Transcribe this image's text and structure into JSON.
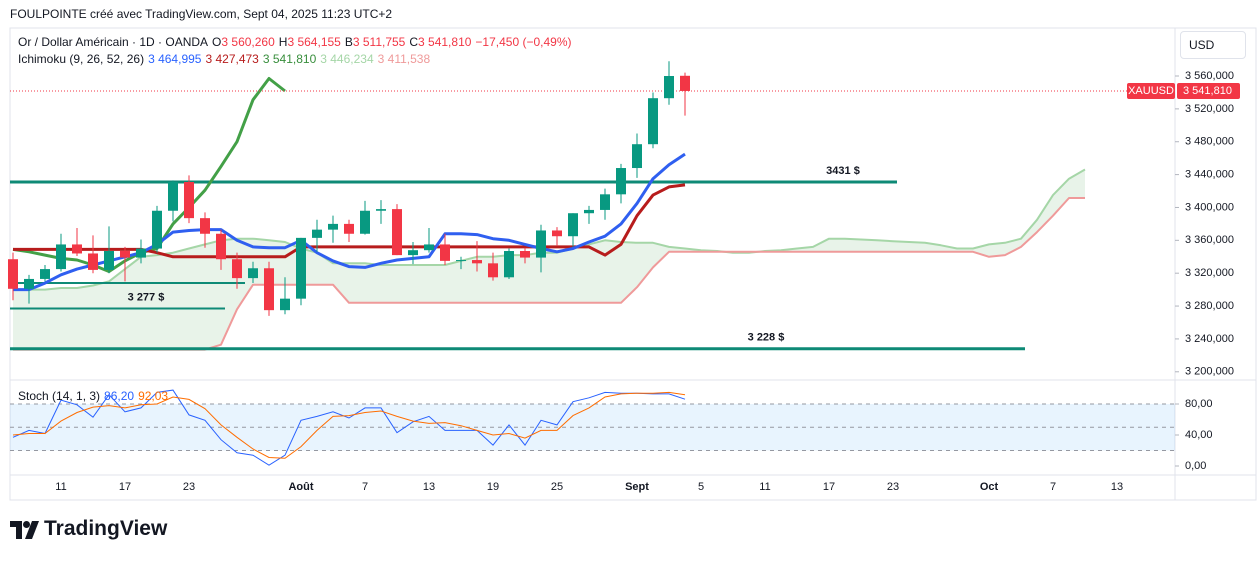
{
  "header": "FOULPOINTE créé avec TradingView.com, Sept 04, 2025 11:23 UTC+2",
  "currency": "USD",
  "logo": "TradingView",
  "chart_data": [
    {
      "type": "candlestick",
      "title": "Or / Dollar Américain · 1D · OANDA",
      "ohlc_legend": [
        {
          "key": "O",
          "label": "3 560,260"
        },
        {
          "key": "H",
          "label": "3 564,155"
        },
        {
          "key": "B",
          "label": "3 511,755"
        },
        {
          "key": "C",
          "label": "3 541,810"
        }
      ],
      "change_label": "−17,450 (−0,49%)",
      "legend_color": "#f23645",
      "up_color": "#089981",
      "down_color": "#f23645",
      "categories": [
        null,
        null,
        null,
        "11",
        null,
        null,
        null,
        "17",
        null,
        null,
        null,
        "23",
        null,
        null,
        null,
        null,
        null,
        null,
        "Août",
        null,
        null,
        null,
        "7",
        null,
        null,
        null,
        "13",
        null,
        null,
        null,
        "19",
        null,
        null,
        null,
        "25",
        null,
        null,
        null,
        null,
        "Sept",
        null,
        null,
        null,
        "5",
        null,
        null,
        null,
        "11",
        null,
        null,
        null,
        "17",
        null,
        null,
        null,
        "23",
        null,
        null,
        null,
        null,
        null,
        "Oct",
        null,
        null,
        null,
        "7",
        null,
        null,
        null,
        "13",
        null,
        null,
        null
      ],
      "open": [
        3337,
        3301,
        3313,
        3325,
        3355,
        3344,
        3324,
        3347,
        3339,
        3350,
        3396,
        3431,
        3387,
        3368,
        3337,
        3314,
        3326,
        3275,
        3289,
        3363,
        3373,
        3380,
        3368,
        3396,
        3398,
        3342,
        3348,
        3355,
        3335,
        3336,
        3332,
        3315,
        3347,
        3339,
        3372,
        3365,
        3393,
        3397,
        3416,
        3448,
        3477,
        3533,
        3560.26,
        null,
        null,
        null,
        null,
        null,
        null,
        null,
        null,
        null,
        null,
        null,
        null,
        null,
        null,
        null,
        null,
        null,
        null,
        null,
        null,
        null,
        null,
        null,
        null,
        null,
        null,
        null,
        null,
        null,
        null
      ],
      "high": [
        3345,
        3318,
        3330,
        3368,
        3375,
        3366,
        3377,
        3352,
        3361,
        3402,
        3433,
        3439,
        3394,
        3373,
        3345,
        3334,
        3334,
        3315,
        3363,
        3385,
        3390,
        3385,
        3408,
        3409,
        3404,
        3358,
        3375,
        3368,
        3340,
        3359,
        3345,
        3350,
        3351,
        3379,
        3376,
        3393,
        3402,
        3423,
        3453,
        3490,
        3540,
        3578,
        3564.155,
        null,
        null,
        null,
        null,
        null,
        null,
        null,
        null,
        null,
        null,
        null,
        null,
        null,
        null,
        null,
        null,
        null,
        null,
        null,
        null,
        null,
        null,
        null,
        null,
        null,
        null,
        null,
        null,
        null,
        null
      ],
      "low": [
        3287,
        3283,
        3310,
        3322,
        3341,
        3320,
        3320,
        3310,
        3332,
        3345,
        3383,
        3381,
        3351,
        3324,
        3301,
        3308,
        3268,
        3270,
        3281,
        3346,
        3357,
        3358,
        3367,
        3380,
        3342,
        3331,
        3345,
        3330,
        3325,
        3322,
        3311,
        3313,
        3332,
        3321,
        3353,
        3352,
        3380,
        3385,
        3405,
        3436,
        3472,
        3525,
        3511.755,
        null,
        null,
        null,
        null,
        null,
        null,
        null,
        null,
        null,
        null,
        null,
        null,
        null,
        null,
        null,
        null,
        null,
        null,
        null,
        null,
        null,
        null,
        null,
        null,
        null,
        null,
        null,
        null,
        null,
        null
      ],
      "close": [
        3301,
        3313,
        3325,
        3355,
        3344,
        3324,
        3347,
        3339,
        3350,
        3396,
        3431,
        3387,
        3368,
        3337,
        3314,
        3326,
        3275,
        3289,
        3363,
        3373,
        3380,
        3368,
        3396,
        3398,
        3342,
        3348,
        3355,
        3335,
        3336,
        3332,
        3315,
        3347,
        3339,
        3372,
        3365,
        3393,
        3397,
        3416,
        3448,
        3477,
        3533,
        3560,
        3541.81,
        null,
        null,
        null,
        null,
        null,
        null,
        null,
        null,
        null,
        null,
        null,
        null,
        null,
        null,
        null,
        null,
        null,
        null,
        null,
        null,
        null,
        null,
        null,
        null,
        null,
        null,
        null,
        null,
        null,
        null
      ],
      "indicator_title": "Ichimoku (9, 26, 52, 26)",
      "cloud_color": "rgba(67,160,71,0.12)",
      "ichimoku": {
        "tenkan": {
          "color": "#2f5ff0",
          "legend_color": "#2962ff",
          "legend_label": "3 464,995",
          "values": [
            3300,
            3300,
            3308,
            3318,
            3325,
            3330,
            3335,
            3340,
            3345,
            3355,
            3370,
            3372,
            3373,
            3373,
            3360,
            3352,
            3351,
            3351,
            3360,
            3345,
            3335,
            3328,
            3327,
            3332,
            3336,
            3338,
            3340,
            3368,
            3368,
            3367,
            3362,
            3360,
            3355,
            3350,
            3346,
            3350,
            3358,
            3365,
            3380,
            3405,
            3435,
            3452,
            3464.995,
            null,
            null,
            null,
            null,
            null,
            null,
            null,
            null,
            null,
            null,
            null,
            null,
            null,
            null,
            null,
            null,
            null,
            null,
            null,
            null,
            null,
            null,
            null,
            null,
            null,
            null,
            null,
            null,
            null,
            null
          ]
        },
        "kijun": {
          "color": "#b71c1c",
          "legend_color": "#b71c1c",
          "legend_label": "3 427,473",
          "values": [
            3349,
            3349,
            3349,
            3349,
            3349,
            3349,
            3349,
            3349,
            3349,
            3345,
            3340,
            3340,
            3340,
            3340,
            3340,
            3340,
            3340,
            3340,
            3352,
            3352,
            3352,
            3352,
            3352,
            3352,
            3352,
            3352,
            3352,
            3352,
            3352,
            3352,
            3352,
            3352,
            3352,
            3352,
            3352,
            3352,
            3352,
            3342,
            3355,
            3390,
            3415,
            3425,
            3427.473,
            null,
            null,
            null,
            null,
            null,
            null,
            null,
            null,
            null,
            null,
            null,
            null,
            null,
            null,
            null,
            null,
            null,
            null,
            null,
            null,
            null,
            null,
            null,
            null,
            null,
            null,
            null,
            null,
            null,
            null
          ]
        },
        "chikou": {
          "color": "#43a047",
          "legend_color": "#388e3c",
          "legend_label": "3 541,810",
          "values": [
            3349,
            3346,
            3342,
            3338,
            3336,
            3330,
            3322,
            3335,
            3345,
            3350,
            3380,
            3400,
            3421,
            3450,
            3480,
            3531,
            3557,
            3541.81,
            null,
            null,
            null,
            null,
            null,
            null,
            null,
            null,
            null,
            null,
            null,
            null,
            null,
            null,
            null,
            null,
            null,
            null,
            null,
            null,
            null,
            null,
            null,
            null,
            null,
            null,
            null,
            null,
            null,
            null,
            null,
            null,
            null,
            null,
            null,
            null,
            null,
            null,
            null,
            null,
            null,
            null,
            null,
            null,
            null,
            null,
            null,
            null,
            null,
            null,
            null,
            null,
            null,
            null,
            null
          ]
        },
        "span_a": {
          "color": "#a5d6a7",
          "legend_color": "#a5d6a7",
          "legend_label": "3 446,234",
          "values": [
            3300,
            3300,
            3300,
            3302,
            3302,
            3305,
            3310,
            3325,
            3340,
            3342,
            3345,
            3350,
            3355,
            3360,
            3362,
            3362,
            3360,
            3358,
            3350,
            3345,
            3332,
            3332,
            3332,
            3330,
            3330,
            3330,
            3330,
            3330,
            3335,
            3340,
            3340,
            3342,
            3342,
            3345,
            3345,
            3350,
            3355,
            3360,
            3358,
            3357,
            3357,
            3352,
            3350,
            3348,
            3347,
            3345,
            3345,
            3347,
            3348,
            3350,
            3352,
            3362,
            3362,
            3361,
            3360,
            3359,
            3358,
            3357,
            3354,
            3350,
            3350,
            3355,
            3357,
            3362,
            3385,
            3415,
            3435,
            3446.234,
            null,
            null,
            null,
            null,
            null
          ]
        },
        "span_b": {
          "color": "#ef9a9a",
          "legend_color": "#ef9a9a",
          "legend_label": "3 411,538",
          "values": [
            3227,
            3227,
            3227,
            3227,
            3227,
            3227,
            3227,
            3227,
            3227,
            3227,
            3227,
            3227,
            3227,
            3233,
            3276,
            3306,
            3306,
            3306,
            3306,
            3306,
            3306,
            3284,
            3284,
            3284,
            3284,
            3284,
            3284,
            3284,
            3284,
            3284,
            3284,
            3284,
            3284,
            3284,
            3284,
            3284,
            3284,
            3284,
            3284,
            3303,
            3327,
            3346,
            3346,
            3346,
            3346,
            3346,
            3346,
            3346,
            3346,
            3346,
            3346,
            3346,
            3346,
            3346,
            3346,
            3346,
            3346,
            3346,
            3346,
            3346,
            3346,
            3340,
            3342,
            3352,
            3370,
            3390,
            3411.538,
            3411.538,
            null,
            null,
            null,
            null,
            null
          ]
        }
      },
      "levels": [
        {
          "value": 3431,
          "label": "3431 $"
        },
        {
          "value": 3308
        },
        {
          "value": 3277,
          "label": "3 277 $"
        },
        {
          "value": 3228,
          "label": "3 228 $"
        }
      ],
      "level_color": "#0e8a76",
      "last_price": {
        "value": 3541.81,
        "label": "3 541,810",
        "symbol": "XAUUSD",
        "color": "#f23645"
      },
      "ylim": [
        3190,
        3616
      ],
      "yticks": [
        {
          "value": 3560,
          "label": "3 560,000"
        },
        {
          "value": 3520,
          "label": "3 520,000"
        },
        {
          "value": 3480,
          "label": "3 480,000"
        },
        {
          "value": 3440,
          "label": "3 440,000"
        },
        {
          "value": 3400,
          "label": "3 400,000"
        },
        {
          "value": 3360,
          "label": "3 360,000"
        },
        {
          "value": 3320,
          "label": "3 320,000"
        },
        {
          "value": 3280,
          "label": "3 280,000"
        },
        {
          "value": 3240,
          "label": "3 240,000"
        },
        {
          "value": 3200,
          "label": "3 200,000"
        }
      ]
    },
    {
      "type": "line",
      "title": "Stoch (14, 1, 3)",
      "series": [
        {
          "color": "#2962ff",
          "legend_label": "86,20",
          "values": [
            37,
            46,
            42,
            85,
            79,
            63,
            92,
            70,
            75,
            95,
            98,
            66,
            59,
            34,
            17,
            14,
            1,
            14,
            59,
            64,
            70,
            62,
            75,
            75,
            43,
            57,
            64,
            46,
            46,
            46,
            27,
            53,
            27,
            59,
            53,
            83,
            88,
            95,
            94,
            94,
            93,
            93,
            86.2,
            null,
            null,
            null,
            null,
            null,
            null,
            null,
            null,
            null,
            null,
            null,
            null,
            null,
            null,
            null,
            null,
            null,
            null,
            null,
            null,
            null,
            null,
            null,
            null,
            null,
            null,
            null,
            null,
            null,
            null
          ]
        },
        {
          "color": "#ff6d00",
          "legend_label": "92,03",
          "values": [
            40,
            42,
            42,
            58,
            69,
            76,
            78,
            75,
            79,
            80,
            89,
            86,
            74,
            53,
            37,
            22,
            11,
            10,
            25,
            46,
            64,
            65,
            69,
            71,
            64,
            58,
            55,
            56,
            52,
            46,
            40,
            42,
            36,
            46,
            46,
            65,
            75,
            89,
            93,
            94,
            94,
            95,
            92.03,
            null,
            null,
            null,
            null,
            null,
            null,
            null,
            null,
            null,
            null,
            null,
            null,
            null,
            null,
            null,
            null,
            null,
            null,
            null,
            null,
            null,
            null,
            null,
            null,
            null,
            null,
            null,
            null,
            null,
            null
          ]
        }
      ],
      "bands": [
        80,
        50,
        20
      ],
      "band_fill": "rgba(33,150,243,0.10)",
      "ylim": [
        -11.6,
        109.7
      ],
      "yticks": [
        {
          "value": 80,
          "label": "80,00"
        },
        {
          "value": 40,
          "label": "40,00"
        },
        {
          "value": 0,
          "label": "0,00"
        }
      ]
    }
  ]
}
